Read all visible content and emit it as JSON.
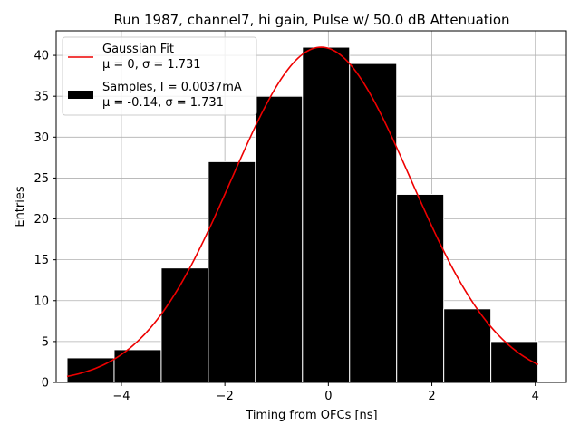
{
  "chart_data": {
    "type": "bar",
    "title": "Run 1987, channel7, hi gain, Pulse w/ 50.0 dB Attenuation",
    "xlabel": "Timing from OFCs [ns]",
    "ylabel": "Entries",
    "xlim": [
      -5.26,
      4.6
    ],
    "ylim": [
      0,
      43
    ],
    "xticks": [
      -4,
      -2,
      0,
      2,
      4
    ],
    "yticks": [
      0,
      5,
      10,
      15,
      20,
      25,
      30,
      35,
      40
    ],
    "xtick_labels": [
      "−4",
      "−2",
      "0",
      "2",
      "4"
    ],
    "ytick_labels": [
      "0",
      "5",
      "10",
      "15",
      "20",
      "25",
      "30",
      "35",
      "40"
    ],
    "grid": true,
    "legend_placement": "top-left",
    "bars": {
      "name_lines": [
        "Samples, I = 0.0037mA",
        "μ = -0.14, σ = 1.731"
      ],
      "color": "#000000",
      "edge_color": "#ffffff",
      "bin_edges": [
        -5.05,
        -4.14,
        -3.23,
        -2.32,
        -1.41,
        -0.5,
        0.41,
        1.32,
        2.23,
        3.14,
        4.05
      ],
      "counts": [
        3,
        4,
        14,
        27,
        35,
        41,
        39,
        23,
        9,
        5
      ]
    },
    "fit": {
      "name_lines": [
        "Gaussian Fit",
        "μ = 0, σ = 1.731"
      ],
      "color": "#ee0000",
      "type": "gaussian",
      "amplitude": 41,
      "mean": -0.14,
      "sigma": 1.731,
      "x_range": [
        -5.05,
        4.05
      ]
    }
  }
}
